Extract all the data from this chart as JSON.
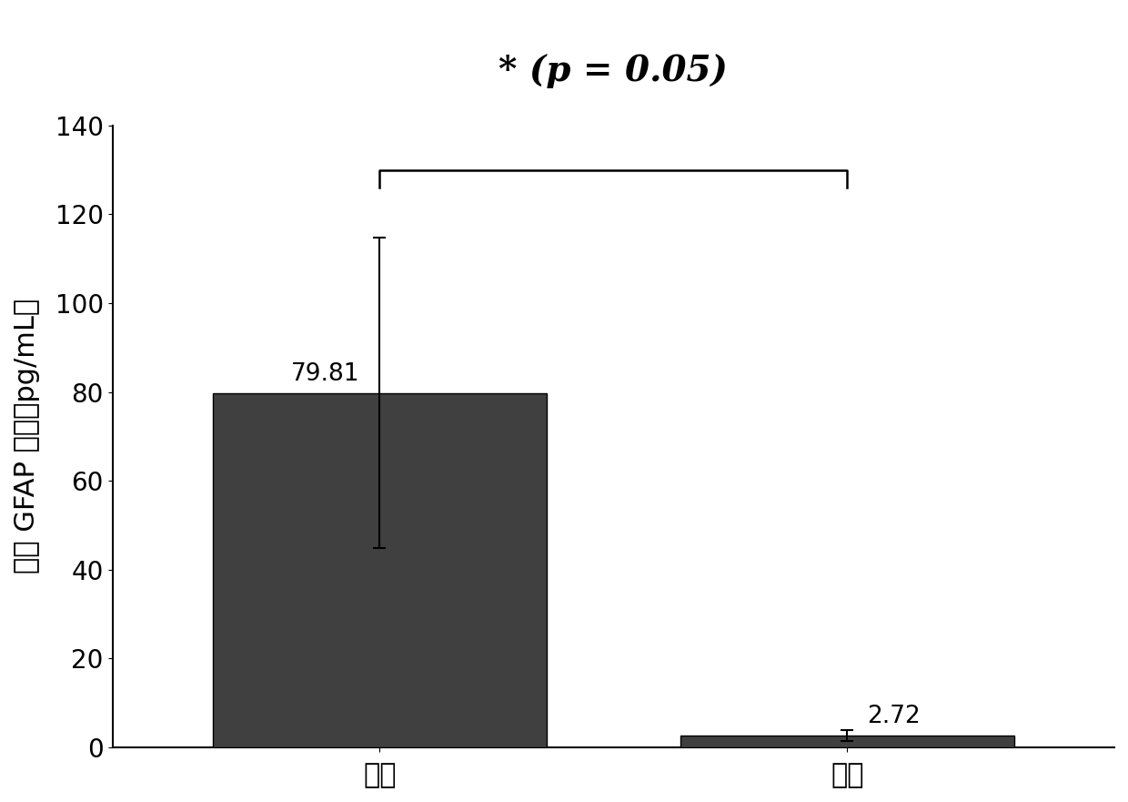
{
  "categories": [
    "中风",
    "健康"
  ],
  "values": [
    79.81,
    2.72
  ],
  "errors": [
    35.0,
    1.2
  ],
  "bar_color": "#404040",
  "bar_width": 0.5,
  "ylim": [
    0,
    140
  ],
  "yticks": [
    0,
    20,
    40,
    60,
    80,
    100,
    120,
    140
  ],
  "ylabel": "血清 GFAP 浓度（pg/mL）",
  "title": "* (p = 0.05)",
  "title_fontsize": 28,
  "label_fontsize": 22,
  "tick_fontsize": 20,
  "value_label_fontsize": 19,
  "bar1_label": "79.81",
  "bar2_label": "2.72",
  "sig_line_y": 130,
  "background_color": "#ffffff",
  "bar_edge_color": "#000000",
  "x_positions": [
    0.3,
    1.0
  ],
  "xlim": [
    -0.1,
    1.4
  ]
}
